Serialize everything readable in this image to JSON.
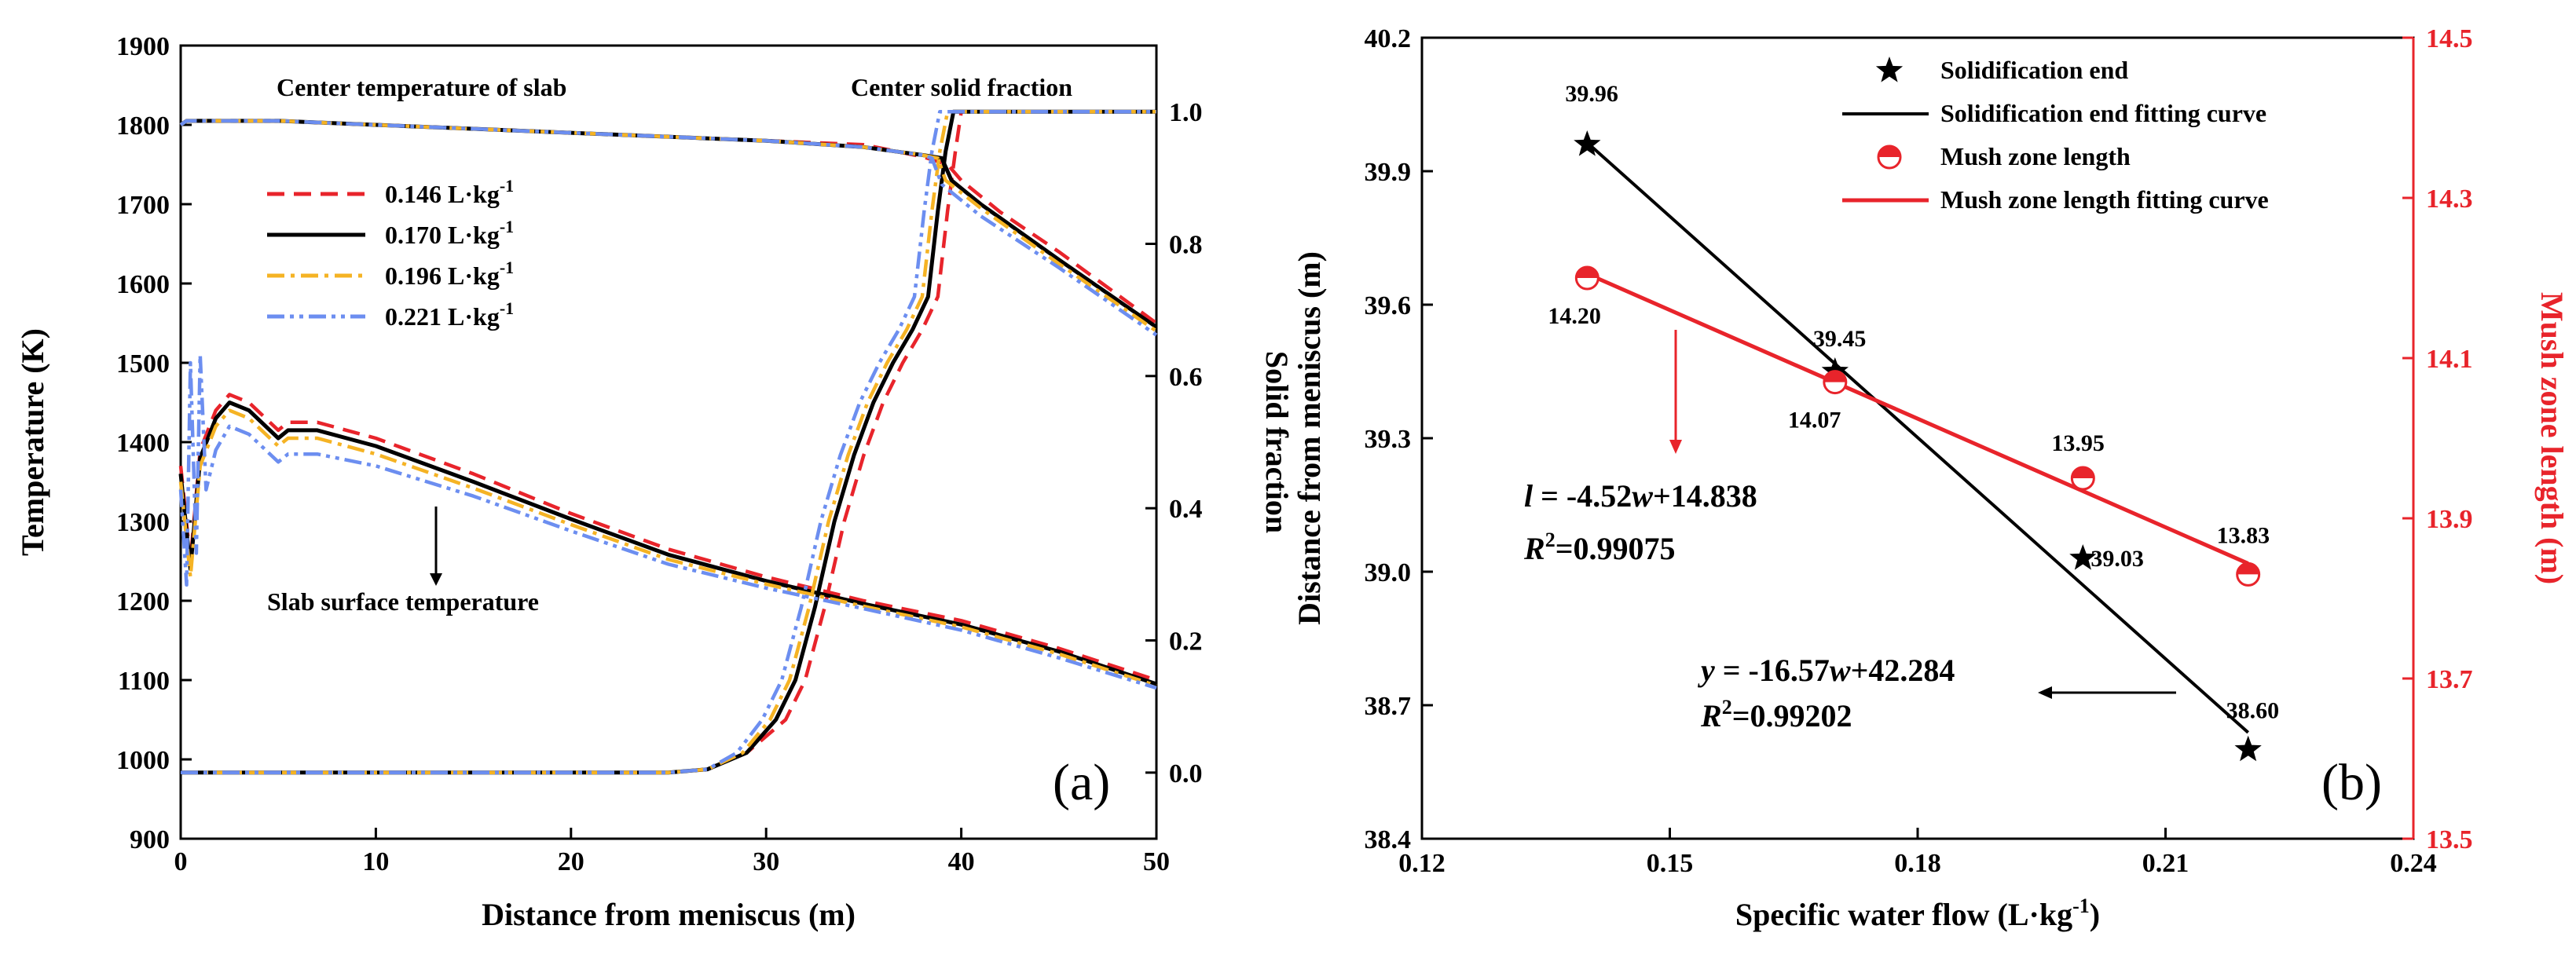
{
  "chart_data": [
    {
      "panel": "(a)",
      "type": "line",
      "xlabel": "Distance from meniscus (m)",
      "ylabel": "Temperature (K)",
      "y2label": "Solid  fraction",
      "xlim": [
        0,
        50
      ],
      "ylim": [
        900,
        1900
      ],
      "y2lim": [
        -0.1,
        1.1
      ],
      "xticks": [
        "0",
        "10",
        "20",
        "30",
        "40",
        "50"
      ],
      "yticks": [
        "900",
        "1000",
        "1100",
        "1200",
        "1300",
        "1400",
        "1500",
        "1600",
        "1700",
        "1800",
        "1900"
      ],
      "y2ticks": [
        "0.0",
        "0.2",
        "0.4",
        "0.6",
        "0.8",
        "1.0"
      ],
      "annotations": {
        "center_temp": "Center temperature of slab",
        "center_fs": "Center solid fraction",
        "surface_temp": "Slab surface temperature"
      },
      "legend": [
        {
          "label": "0.146 L·kg",
          "sup": "-1",
          "color": "#e8242b",
          "dash": "dash"
        },
        {
          "label": "0.170 L·kg",
          "sup": "-1",
          "color": "#000000",
          "dash": "solid"
        },
        {
          "label": "0.196 L·kg",
          "sup": "-1",
          "color": "#f5b324",
          "dash": "dashdot"
        },
        {
          "label": "0.221 L·kg",
          "sup": "-1",
          "color": "#6c8ef0",
          "dash": "dashdotdot"
        }
      ],
      "series": [
        {
          "name": "0.146",
          "color": "#e8242b",
          "dash": "dash",
          "surface_x": [
            0,
            0.5,
            1,
            1.8,
            2.5,
            3.5,
            5,
            5.5,
            7,
            10,
            15,
            20,
            25,
            30,
            35,
            40,
            45,
            50
          ],
          "surface_y": [
            1370,
            1250,
            1390,
            1440,
            1460,
            1450,
            1415,
            1425,
            1425,
            1405,
            1360,
            1310,
            1265,
            1230,
            1200,
            1175,
            1140,
            1100
          ],
          "center_x": [
            0,
            0.3,
            5,
            10,
            20,
            30,
            35,
            38,
            39.3,
            40,
            42,
            45,
            50
          ],
          "center_y": [
            1800,
            1805,
            1805,
            1800,
            1790,
            1780,
            1775,
            1760,
            1750,
            1730,
            1690,
            1640,
            1550
          ],
          "fs_x": [
            0,
            25,
            27,
            29,
            31,
            32,
            33,
            34,
            35,
            36,
            37,
            38,
            38.8,
            39.3,
            39.7,
            40,
            50
          ],
          "fs_y": [
            0,
            0,
            0.005,
            0.03,
            0.08,
            0.14,
            0.25,
            0.38,
            0.48,
            0.56,
            0.62,
            0.67,
            0.72,
            0.85,
            0.94,
            1.0,
            1.0
          ]
        },
        {
          "name": "0.170",
          "color": "#000000",
          "dash": "solid",
          "surface_x": [
            0,
            0.5,
            1,
            1.8,
            2.5,
            3.5,
            5,
            5.5,
            7,
            10,
            15,
            20,
            25,
            30,
            35,
            40,
            45,
            50
          ],
          "surface_y": [
            1360,
            1240,
            1380,
            1430,
            1450,
            1440,
            1405,
            1415,
            1415,
            1395,
            1350,
            1303,
            1258,
            1225,
            1196,
            1170,
            1136,
            1095
          ],
          "center_x": [
            0,
            0.3,
            5,
            10,
            20,
            30,
            35,
            38,
            39,
            39.5,
            41,
            45,
            50
          ],
          "center_y": [
            1800,
            1805,
            1805,
            1800,
            1790,
            1780,
            1772,
            1762,
            1758,
            1730,
            1700,
            1630,
            1545
          ],
          "fs_x": [
            0,
            25,
            27,
            29,
            30.5,
            31.5,
            32.5,
            33.5,
            34.5,
            35.5,
            36.5,
            37.5,
            38.3,
            38.8,
            39.2,
            39.6,
            50
          ],
          "fs_y": [
            0,
            0,
            0.005,
            0.03,
            0.08,
            0.14,
            0.25,
            0.38,
            0.48,
            0.56,
            0.62,
            0.67,
            0.72,
            0.85,
            0.94,
            1.0,
            1.0
          ]
        },
        {
          "name": "0.196",
          "color": "#f5b324",
          "dash": "dashdot",
          "surface_x": [
            0,
            0.5,
            1,
            1.8,
            2.5,
            3.5,
            5,
            5.5,
            7,
            10,
            15,
            20,
            25,
            30,
            35,
            40,
            45,
            50
          ],
          "surface_y": [
            1350,
            1230,
            1370,
            1420,
            1440,
            1430,
            1395,
            1405,
            1405,
            1385,
            1342,
            1296,
            1252,
            1221,
            1193,
            1167,
            1133,
            1093
          ],
          "center_x": [
            0,
            0.3,
            5,
            10,
            20,
            30,
            35,
            38,
            38.8,
            39.2,
            41,
            45,
            50
          ],
          "center_y": [
            1800,
            1805,
            1805,
            1800,
            1790,
            1780,
            1772,
            1762,
            1758,
            1730,
            1695,
            1625,
            1540
          ],
          "fs_x": [
            0,
            25,
            27,
            28.8,
            30.2,
            31.2,
            32.2,
            33.2,
            34.2,
            35.2,
            36.2,
            37.2,
            38,
            38.5,
            38.9,
            39.3,
            50
          ],
          "fs_y": [
            0,
            0,
            0.005,
            0.03,
            0.08,
            0.14,
            0.25,
            0.38,
            0.48,
            0.56,
            0.62,
            0.67,
            0.72,
            0.85,
            0.94,
            1.0,
            1.0
          ]
        },
        {
          "name": "0.221",
          "color": "#6c8ef0",
          "dash": "dashdotdot",
          "surface_x": [
            0,
            0.3,
            0.5,
            0.8,
            1,
            1.3,
            1.8,
            2.5,
            3.5,
            5,
            5.5,
            7,
            10,
            15,
            20,
            25,
            30,
            35,
            40,
            45,
            50
          ],
          "surface_y": [
            1340,
            1220,
            1500,
            1260,
            1510,
            1340,
            1390,
            1420,
            1410,
            1375,
            1385,
            1385,
            1370,
            1332,
            1288,
            1246,
            1216,
            1190,
            1163,
            1128,
            1090
          ],
          "center_x": [
            0,
            0.3,
            5,
            10,
            20,
            30,
            35,
            38,
            38.5,
            39,
            41,
            45,
            50
          ],
          "center_y": [
            1800,
            1805,
            1805,
            1800,
            1790,
            1780,
            1772,
            1762,
            1758,
            1725,
            1685,
            1620,
            1535
          ],
          "fs_x": [
            0,
            25,
            27,
            28.5,
            29.8,
            30.8,
            31.8,
            32.8,
            33.8,
            34.8,
            35.8,
            36.8,
            37.6,
            38.1,
            38.5,
            38.9,
            50
          ],
          "fs_y": [
            0,
            0,
            0.005,
            0.03,
            0.08,
            0.14,
            0.25,
            0.38,
            0.48,
            0.56,
            0.62,
            0.67,
            0.72,
            0.85,
            0.94,
            1.0,
            1.0
          ]
        }
      ]
    },
    {
      "panel": "(b)",
      "type": "scatter",
      "xlabel": "Specific water flow (L·kg",
      "xlabel_sup": "-1",
      "xlabel_tail": ")",
      "ylabel": "Distance from meniscus (m)",
      "y2label": "Mush zone length (m)",
      "xlim": [
        0.12,
        0.24
      ],
      "ylim": [
        38.4,
        40.2
      ],
      "y2lim": [
        13.5,
        14.5
      ],
      "xticks": [
        "0.12",
        "0.15",
        "0.18",
        "0.21",
        "0.24"
      ],
      "yticks": [
        "38.4",
        "38.7",
        "39.0",
        "39.3",
        "39.6",
        "39.9",
        "40.2"
      ],
      "y2ticks": [
        "13.5",
        "13.7",
        "13.9",
        "14.1",
        "14.3",
        "14.5"
      ],
      "solidification_end": {
        "x": [
          0.14,
          0.17,
          0.2,
          0.22
        ],
        "y": [
          39.96,
          39.45,
          39.03,
          38.6
        ],
        "labels": [
          "39.96",
          "39.45",
          "39.03",
          "38.60"
        ],
        "color": "#000000"
      },
      "mush_zone_length": {
        "x": [
          0.14,
          0.17,
          0.2,
          0.22
        ],
        "y": [
          14.2,
          14.07,
          13.95,
          13.83
        ],
        "labels": [
          "14.20",
          "14.07",
          "13.95",
          "13.83"
        ],
        "color": "#e8242b"
      },
      "fits": {
        "solid_end": {
          "slope": -16.57,
          "intercept": 42.284,
          "x_range": [
            0.14,
            0.22
          ],
          "eq_var": "y",
          "eq_rest": " = -16.57",
          "eq_w": "w",
          "eq_tail": "+42.284",
          "r2_label": "R",
          "r2_sup": "2",
          "r2_value": "=0.99202"
        },
        "mush": {
          "slope": -4.52,
          "intercept": 14.838,
          "x_range": [
            0.14,
            0.22
          ],
          "eq_var": "l",
          "eq_rest": " = -4.52",
          "eq_w": "w",
          "eq_tail": "+14.838",
          "r2_label": "R",
          "r2_sup": "2",
          "r2_value": "=0.99075"
        }
      },
      "legend": [
        {
          "label": "Solidification end",
          "marker": "star"
        },
        {
          "label": "Solidification end fitting curve",
          "marker": "black-line"
        },
        {
          "label": "Mush zone length",
          "marker": "half-circle"
        },
        {
          "label": "Mush zone length fitting curve",
          "marker": "red-line"
        }
      ]
    }
  ]
}
